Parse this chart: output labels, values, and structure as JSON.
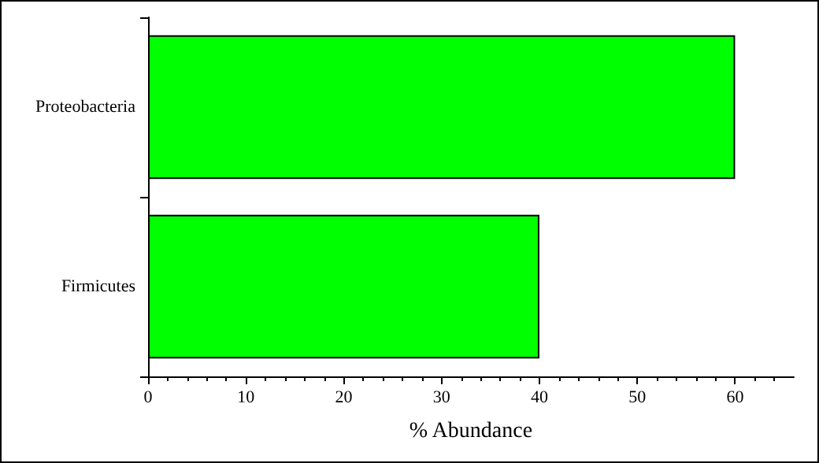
{
  "chart_data": {
    "type": "bar",
    "orientation": "horizontal",
    "xlabel": "% Abundance",
    "categories": [
      "Proteobacteria",
      "Firmicutes"
    ],
    "values": [
      60,
      40
    ],
    "color": "#00ff00",
    "xlim": [
      0,
      66
    ],
    "xticks": [
      0,
      10,
      20,
      30,
      40,
      50,
      60
    ],
    "grid": false
  }
}
